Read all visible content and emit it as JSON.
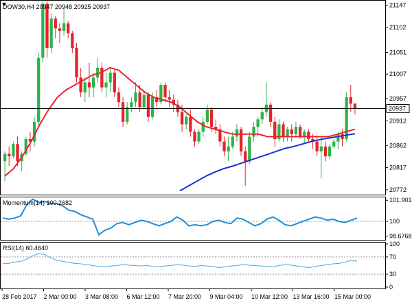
{
  "header": {
    "symbol_text": "DOW30,H4 20947 20948 20925 20937"
  },
  "colors": {
    "bull": "#2db34a",
    "bear": "#e8222c",
    "ma_fast": "#e8222c",
    "ma_slow": "#1a2fd1",
    "osc": "#1f8fd6",
    "rsi": "#4aa6e0",
    "price_marker_bg": "#ffffff",
    "frame": "#000000"
  },
  "chart_data": [
    {
      "type": "candlestick",
      "pane": "price",
      "ylim": [
        20765,
        21152
      ],
      "y_ticks": [
        21147,
        21102,
        21051,
        21007,
        20957,
        20912,
        20862,
        20817,
        20772
      ],
      "current_price": 20937,
      "current_price_label": "20937",
      "x_tick_labels": [
        "28 Feb 2017",
        "2 Mar 00:00",
        "3 Mar 08:00",
        "6 Mar 12:00",
        "7 Mar 20:00",
        "9 Mar 04:00",
        "10 Mar 12:00",
        "13 Mar 16:00",
        "15 Mar 00:00"
      ],
      "candles": [
        [
          20830,
          20850,
          20790,
          20845
        ],
        [
          20845,
          20860,
          20820,
          20840
        ],
        [
          20840,
          20870,
          20835,
          20865
        ],
        [
          20865,
          20880,
          20820,
          20830
        ],
        [
          20830,
          20850,
          20810,
          20845
        ],
        [
          20845,
          20880,
          20840,
          20875
        ],
        [
          20875,
          20890,
          20850,
          20870
        ],
        [
          20870,
          20920,
          20860,
          20910
        ],
        [
          20910,
          21050,
          20900,
          21040
        ],
        [
          21040,
          21160,
          21030,
          21150
        ],
        [
          21150,
          21155,
          21040,
          21060
        ],
        [
          21060,
          21130,
          21050,
          21120
        ],
        [
          21120,
          21125,
          21080,
          21100
        ],
        [
          21100,
          21110,
          21070,
          21095
        ],
        [
          21095,
          21140,
          21085,
          21110
        ],
        [
          21110,
          21115,
          21080,
          21090
        ],
        [
          21090,
          21095,
          21050,
          21060
        ],
        [
          21060,
          21070,
          20990,
          21000
        ],
        [
          21000,
          21020,
          20960,
          20970
        ],
        [
          20970,
          21000,
          20950,
          20990
        ],
        [
          20990,
          21030,
          20960,
          20980
        ],
        [
          20980,
          21010,
          20960,
          21000
        ],
        [
          21000,
          21040,
          20990,
          21020
        ],
        [
          21020,
          21030,
          20970,
          20980
        ],
        [
          20980,
          21010,
          20960,
          20990
        ],
        [
          20990,
          21020,
          20970,
          21010
        ],
        [
          21010,
          21015,
          20960,
          20970
        ],
        [
          20970,
          20980,
          20940,
          20950
        ],
        [
          20950,
          20960,
          20900,
          20910
        ],
        [
          20910,
          20950,
          20905,
          20940
        ],
        [
          20940,
          20960,
          20930,
          20950
        ],
        [
          20950,
          20990,
          20940,
          20970
        ],
        [
          20970,
          20985,
          20930,
          20940
        ],
        [
          20940,
          20975,
          20935,
          20965
        ],
        [
          20965,
          20970,
          20910,
          20920
        ],
        [
          20920,
          20970,
          20915,
          20960
        ],
        [
          20960,
          20975,
          20940,
          20950
        ],
        [
          20950,
          20990,
          20945,
          20985
        ],
        [
          20985,
          20990,
          20950,
          20960
        ],
        [
          20960,
          20975,
          20940,
          20955
        ],
        [
          20955,
          20965,
          20930,
          20945
        ],
        [
          20945,
          20955,
          20920,
          20930
        ],
        [
          20930,
          20945,
          20890,
          20905
        ],
        [
          20905,
          20925,
          20895,
          20920
        ],
        [
          20920,
          20935,
          20880,
          20890
        ],
        [
          20890,
          20895,
          20860,
          20870
        ],
        [
          20870,
          20895,
          20865,
          20890
        ],
        [
          20890,
          20920,
          20880,
          20910
        ],
        [
          20910,
          20945,
          20905,
          20935
        ],
        [
          20935,
          20940,
          20890,
          20900
        ],
        [
          20900,
          20915,
          20885,
          20895
        ],
        [
          20895,
          20905,
          20860,
          20870
        ],
        [
          20870,
          20880,
          20840,
          20850
        ],
        [
          20850,
          20880,
          20830,
          20860
        ],
        [
          20860,
          20890,
          20855,
          20880
        ],
        [
          20880,
          20905,
          20870,
          20895
        ],
        [
          20895,
          20900,
          20840,
          20850
        ],
        [
          20850,
          20860,
          20780,
          20830
        ],
        [
          20830,
          20890,
          20825,
          20880
        ],
        [
          20880,
          20910,
          20870,
          20900
        ],
        [
          20900,
          20920,
          20880,
          20915
        ],
        [
          20915,
          20940,
          20905,
          20930
        ],
        [
          20930,
          20990,
          20920,
          20945
        ],
        [
          20945,
          20950,
          20900,
          20910
        ],
        [
          20910,
          20920,
          20860,
          20875
        ],
        [
          20875,
          20915,
          20870,
          20905
        ],
        [
          20905,
          20910,
          20870,
          20880
        ],
        [
          20880,
          20900,
          20870,
          20895
        ],
        [
          20895,
          20905,
          20870,
          20885
        ],
        [
          20885,
          20910,
          20880,
          20900
        ],
        [
          20900,
          20905,
          20875,
          20880
        ],
        [
          20880,
          20895,
          20865,
          20890
        ],
        [
          20890,
          20895,
          20870,
          20875
        ],
        [
          20875,
          20885,
          20855,
          20870
        ],
        [
          20870,
          20880,
          20840,
          20850
        ],
        [
          20850,
          20880,
          20795,
          20860
        ],
        [
          20860,
          20870,
          20830,
          20840
        ],
        [
          20840,
          20865,
          20835,
          20860
        ],
        [
          20860,
          20875,
          20855,
          20870
        ],
        [
          20870,
          20890,
          20855,
          20885
        ],
        [
          20885,
          20895,
          20860,
          20875
        ],
        [
          20875,
          20970,
          20870,
          20960
        ],
        [
          20960,
          20985,
          20930,
          20947
        ],
        [
          20947,
          20948,
          20925,
          20937
        ]
      ],
      "ma_fast": {
        "color_key": "ma_fast",
        "start_value": 20800,
        "points": [
          20800,
          20815,
          20840,
          20870,
          20905,
          20935,
          20960,
          20975,
          20985,
          20995,
          21005,
          21010,
          21020,
          21015,
          21000,
          20985,
          20970,
          20960,
          20955,
          20950,
          20940,
          20925,
          20910,
          20900,
          20895,
          20890,
          20885,
          20885,
          20885,
          20885,
          20880,
          20880,
          20880,
          20880,
          20880,
          20880,
          20880,
          20880,
          20885,
          20890,
          20895
        ]
      },
      "ma_slow": {
        "color_key": "ma_slow",
        "points": [
          null,
          null,
          null,
          null,
          null,
          null,
          null,
          null,
          null,
          null,
          null,
          null,
          null,
          null,
          null,
          null,
          null,
          null,
          null,
          null,
          20770,
          20780,
          20790,
          20800,
          20808,
          20815,
          20820,
          20826,
          20832,
          20838,
          20844,
          20850,
          20856,
          20860,
          20865,
          20870,
          20874,
          20877,
          20880,
          20883,
          20886
        ]
      }
    },
    {
      "type": "line",
      "pane": "momentum",
      "title": "Momentum(14) 100.2682",
      "ylim": [
        98.4,
        102.1
      ],
      "y_ticks": [
        101.9016,
        100,
        98.6768
      ],
      "y_tick_labels": [
        "101.9016",
        "100",
        "98.6768"
      ],
      "reference_level": 100,
      "values": [
        100.3,
        100.2,
        100.3,
        100.5,
        101.5,
        102.0,
        101.7,
        101.8,
        101.6,
        101.6,
        101.4,
        101.0,
        100.9,
        100.6,
        100.4,
        100.2,
        98.8,
        99.2,
        99.4,
        99.8,
        99.9,
        99.7,
        99.9,
        100.1,
        100.0,
        99.8,
        99.6,
        99.8,
        100.0,
        100.4,
        100.1,
        99.6,
        99.7,
        99.6,
        99.7,
        100.0,
        100.1,
        99.9,
        99.8,
        100.3,
        100.2,
        99.9,
        99.6,
        99.8,
        100.2,
        100.4,
        100.1,
        99.7,
        99.6,
        99.8,
        100.0,
        100.2,
        100.4,
        100.3,
        100.1,
        100.2,
        100.0,
        99.9,
        100.1,
        100.3
      ]
    },
    {
      "type": "line",
      "pane": "rsi",
      "title": "RSI(14) 60.4640",
      "ylim": [
        0,
        100
      ],
      "y_ticks": [
        100,
        70,
        30,
        0
      ],
      "y_tick_labels": [
        "100",
        "70",
        "30",
        "0"
      ],
      "levels": [
        70,
        30
      ],
      "values": [
        55,
        55,
        58,
        60,
        65,
        72,
        78,
        75,
        68,
        62,
        60,
        57,
        55,
        54,
        52,
        50,
        48,
        47,
        49,
        50,
        52,
        51,
        50,
        49,
        50,
        48,
        47,
        49,
        50,
        52,
        51,
        49,
        48,
        50,
        49,
        48,
        45,
        47,
        49,
        50,
        52,
        51,
        50,
        49,
        48,
        47,
        50,
        52,
        51,
        49,
        47,
        45,
        48,
        50,
        52,
        54,
        55,
        58,
        62,
        60
      ]
    }
  ]
}
